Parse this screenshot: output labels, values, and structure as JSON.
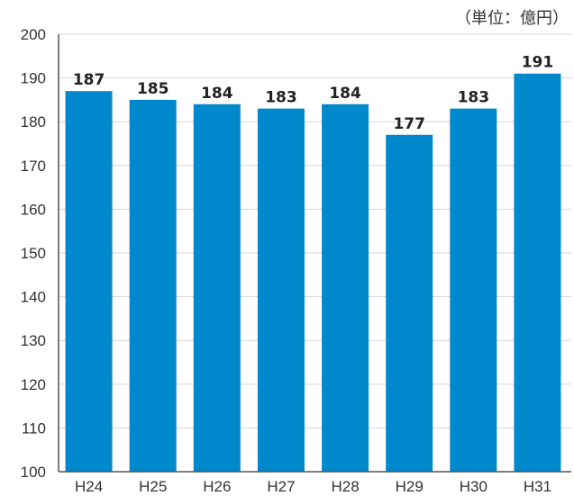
{
  "unit_label": "（単位：億円）",
  "colors": {
    "bar": "#0088cc",
    "grid": "#d4d4d4",
    "axis": "#555555",
    "text": "#333333"
  },
  "chart_data": {
    "type": "bar",
    "categories": [
      "H24",
      "H25",
      "H26",
      "H27",
      "H28",
      "H29",
      "H30",
      "H31"
    ],
    "values": [
      187,
      185,
      184,
      183,
      184,
      177,
      183,
      191
    ],
    "data_labels": [
      "187",
      "185",
      "184",
      "183",
      "184",
      "177",
      "183",
      "191"
    ],
    "title": "",
    "xlabel": "",
    "ylabel": "",
    "ylim": [
      100,
      200
    ],
    "yticks": [
      100,
      110,
      120,
      130,
      140,
      150,
      160,
      170,
      180,
      190,
      200
    ],
    "grid": true,
    "legend": "none"
  }
}
